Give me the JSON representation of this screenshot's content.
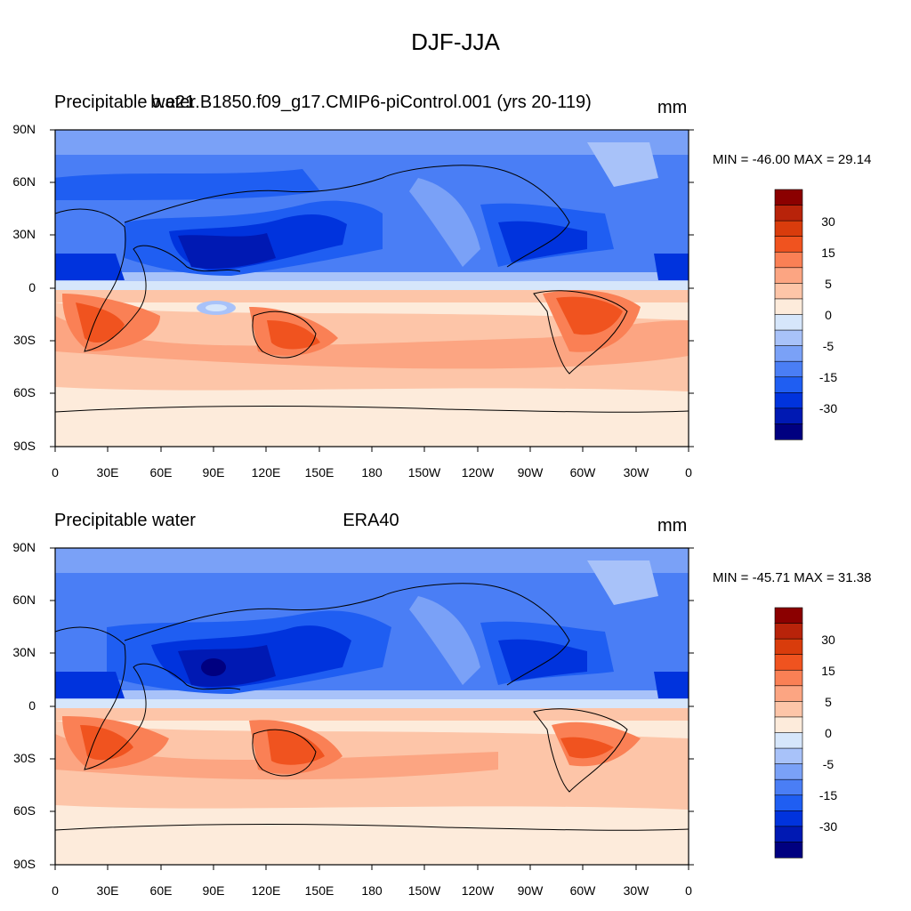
{
  "figure": {
    "title": "DJF-JJA"
  },
  "colors": {
    "levels": [
      "#000080",
      "#0019b3",
      "#0033dd",
      "#1f5ef2",
      "#4a7ef5",
      "#7aa1f7",
      "#a8c2f9",
      "#d6e6fb",
      "#fdebdb",
      "#fdc5a8",
      "#fca582",
      "#fa8055",
      "#f0531f",
      "#d93c0c",
      "#b8230a",
      "#8b0000"
    ],
    "land_outline": "#000000"
  },
  "colorbar": {
    "tick_labels": [
      "30",
      "15",
      "5",
      "0",
      "-5",
      "-15",
      "-30"
    ]
  },
  "axes": {
    "lat_labels": [
      "90N",
      "60N",
      "30N",
      "0",
      "30S",
      "60S",
      "90S"
    ],
    "lon_labels": [
      "0",
      "30E",
      "60E",
      "90E",
      "120E",
      "150E",
      "180",
      "150W",
      "120W",
      "90W",
      "60W",
      "30W",
      "0"
    ]
  },
  "panels": [
    {
      "left_title": "Precipitable water",
      "center_title": "b.e21.B1850.f09_g17.CMIP6-piControl.001 (yrs 20-119)",
      "units": "mm",
      "min_max": "MIN = -46.00 MAX =  29.14"
    },
    {
      "left_title": "Precipitable water",
      "center_title": "ERA40",
      "units": "mm",
      "min_max": "MIN = -45.71 MAX =  31.38"
    }
  ]
}
